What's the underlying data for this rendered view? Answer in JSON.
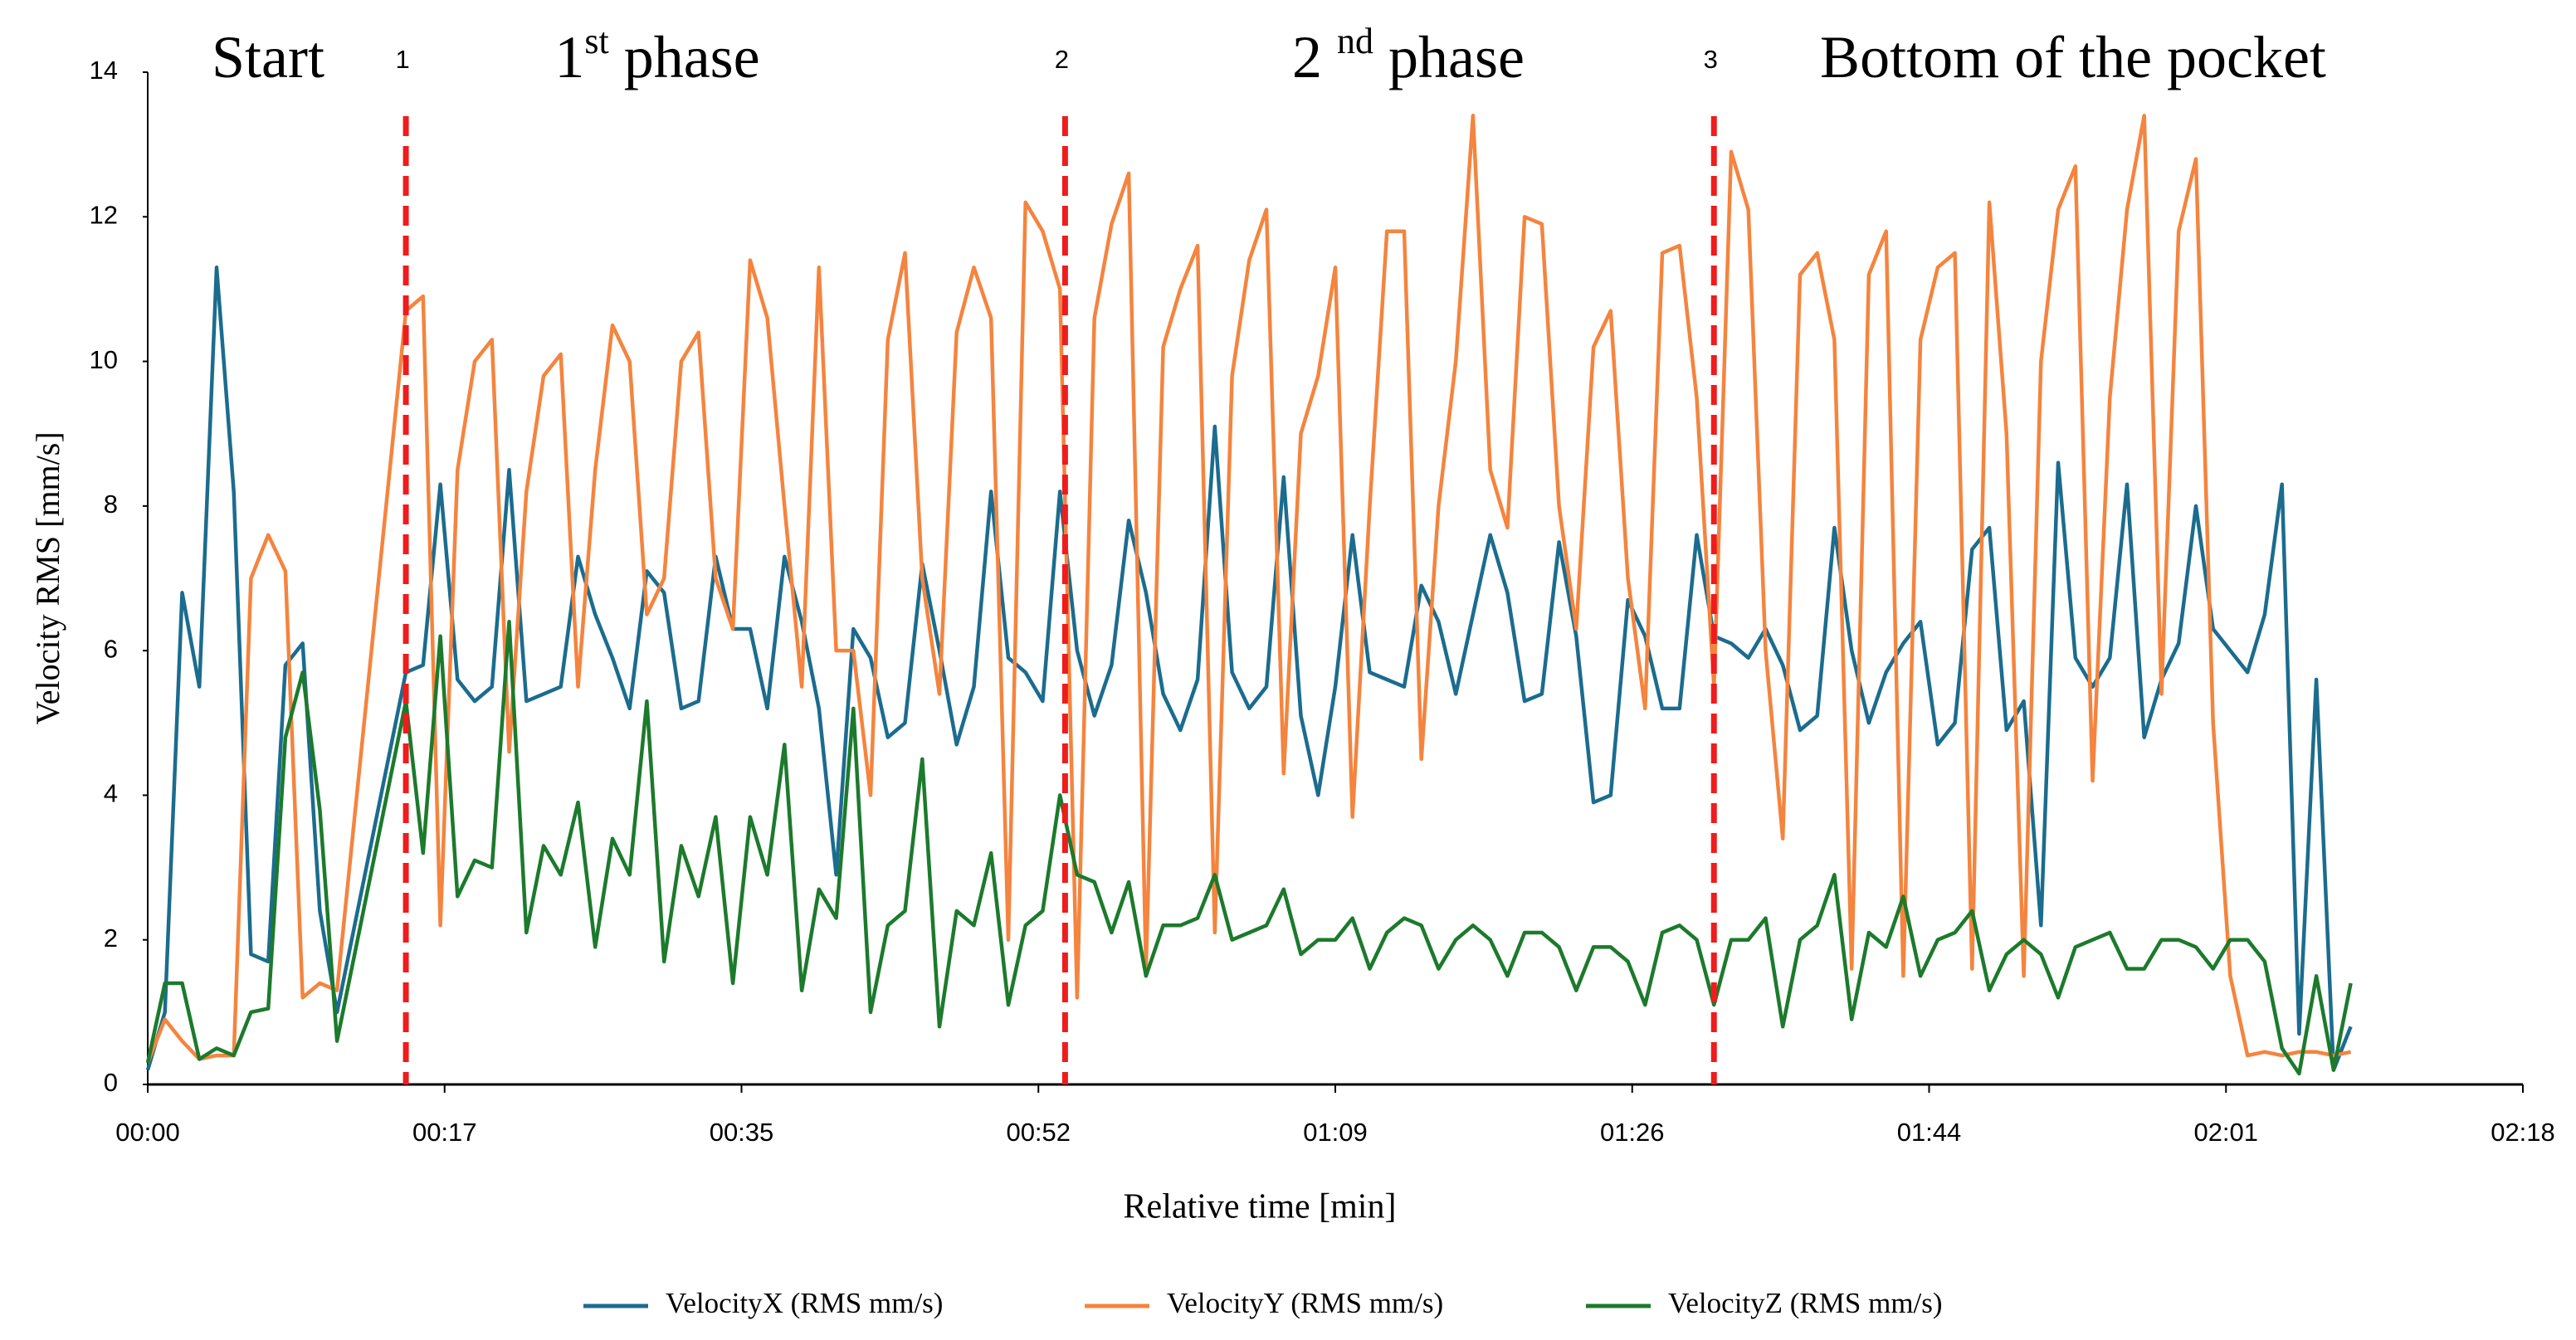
{
  "chart_data": {
    "type": "line",
    "x_label": "Relative time [min]",
    "y_label": "Velocity RMS [mm/s]",
    "xlim": [
      0,
      138
    ],
    "xticks": [
      {
        "value": 0,
        "label": "00:00"
      },
      {
        "value": 17.25,
        "label": "00:17"
      },
      {
        "value": 34.5,
        "label": "00:35"
      },
      {
        "value": 51.75,
        "label": "00:52"
      },
      {
        "value": 69,
        "label": "01:09"
      },
      {
        "value": 86.25,
        "label": "01:26"
      },
      {
        "value": 103.5,
        "label": "01:44"
      },
      {
        "value": 120.75,
        "label": "02:01"
      },
      {
        "value": 138,
        "label": "02:18"
      }
    ],
    "ylim": [
      0,
      14
    ],
    "yticks": [
      0,
      2,
      4,
      6,
      8,
      10,
      12,
      14
    ],
    "legend": "bottom",
    "markers": [
      {
        "label": "1",
        "x": 15,
        "color": "#ee1c1c"
      },
      {
        "label": "2",
        "x": 53.3,
        "color": "#ee1c1c"
      },
      {
        "label": "3",
        "x": 91,
        "color": "#ee1c1c"
      }
    ],
    "phases": [
      {
        "text": "Start"
      },
      {
        "text": "1",
        "sup": "st",
        "after": " phase"
      },
      {
        "text": "2 ",
        "sup": "nd",
        "after": " phase"
      },
      {
        "text": "Bottom of the pocket"
      }
    ],
    "x": [
      0,
      1,
      2,
      3,
      4,
      5,
      6,
      7,
      8,
      9,
      10,
      11,
      15,
      16,
      17,
      18,
      19,
      20,
      21,
      22,
      23,
      24,
      25,
      26,
      27,
      28,
      29,
      30,
      31,
      32,
      33,
      34,
      35,
      36,
      37,
      38,
      39,
      40,
      41,
      42,
      43,
      44,
      45,
      46,
      47,
      48,
      49,
      50,
      51,
      52,
      53,
      54,
      55,
      56,
      57,
      58,
      59,
      60,
      61,
      62,
      63,
      64,
      65,
      66,
      67,
      68,
      69,
      70,
      71,
      72,
      73,
      74,
      75,
      76,
      77,
      78,
      79,
      80,
      81,
      82,
      83,
      84,
      85,
      86,
      87,
      88,
      89,
      90,
      91,
      92,
      93,
      94,
      95,
      96,
      97,
      98,
      99,
      100,
      101,
      102,
      103,
      104,
      105,
      106,
      107,
      108,
      109,
      110,
      111,
      112,
      113,
      114,
      115,
      116,
      117,
      118,
      119,
      120,
      121,
      122,
      123,
      124,
      125,
      126,
      127,
      128
    ],
    "series": [
      {
        "name": "VelocityX (RMS mm/s)",
        "color": "#1b6c8e",
        "values": [
          0.2,
          1,
          6.8,
          5.5,
          11.3,
          8.2,
          1.8,
          1.7,
          5.8,
          6.1,
          2.4,
          1,
          5.7,
          5.8,
          8.3,
          5.6,
          5.3,
          5.5,
          8.5,
          5.3,
          5.4,
          5.5,
          7.3,
          6.5,
          5.9,
          5.2,
          7.1,
          6.8,
          5.2,
          5.3,
          7.3,
          6.3,
          6.3,
          5.2,
          7.3,
          6.4,
          5.2,
          2.9,
          6.3,
          5.9,
          4.8,
          5,
          7.2,
          6,
          4.7,
          5.5,
          8.2,
          5.9,
          5.7,
          5.3,
          8.2,
          6,
          5.1,
          5.8,
          7.8,
          6.8,
          5.4,
          4.9,
          5.6,
          9.1,
          5.7,
          5.2,
          5.5,
          8.4,
          5.1,
          4,
          5.5,
          7.6,
          5.7,
          5.6,
          5.5,
          6.9,
          6.4,
          5.4,
          6.5,
          7.6,
          6.8,
          5.3,
          5.4,
          7.5,
          6.2,
          3.9,
          4,
          6.7,
          6.2,
          5.2,
          5.2,
          7.6,
          6.2,
          6.1,
          5.9,
          6.3,
          5.8,
          4.9,
          5.1,
          7.7,
          6,
          5,
          5.7,
          6.1,
          6.4,
          4.7,
          5,
          7.4,
          7.7,
          4.9,
          5.3,
          2.2,
          8.6,
          5.9,
          5.5,
          5.9,
          8.3,
          4.8,
          5.6,
          6.1,
          8,
          6.3,
          6,
          5.7,
          6.5,
          8.3,
          0.7,
          5.6,
          0.2,
          0.8
        ]
      },
      {
        "name": "VelocityY (RMS mm/s)",
        "color": "#f4843e",
        "values": [
          0.3,
          0.9,
          0.6,
          0.35,
          0.4,
          0.4,
          7,
          7.6,
          7.1,
          1.2,
          1.4,
          1.3,
          10.7,
          10.9,
          2.2,
          8.5,
          10,
          10.3,
          4.6,
          8.2,
          9.8,
          10.1,
          5.5,
          8.5,
          10.5,
          10,
          6.5,
          7,
          10,
          10.4,
          7,
          6.3,
          11.4,
          10.6,
          8,
          5.5,
          11.3,
          6,
          6,
          4,
          10.3,
          11.5,
          7,
          5.4,
          10.4,
          11.3,
          10.6,
          2,
          12.2,
          11.8,
          11,
          1.2,
          10.6,
          11.9,
          12.6,
          1.6,
          10.2,
          11,
          11.6,
          2.1,
          9.8,
          11.4,
          12.1,
          4.3,
          9,
          9.8,
          11.3,
          3.7,
          8,
          11.8,
          11.8,
          4.5,
          8,
          10,
          13.4,
          8.5,
          7.7,
          12,
          11.9,
          8,
          6.3,
          10.2,
          10.7,
          7,
          5.2,
          11.5,
          11.6,
          9.5,
          5.5,
          12.9,
          12.1,
          6,
          3.4,
          11.2,
          11.5,
          10.3,
          1.6,
          11.2,
          11.8,
          1.5,
          10.3,
          11.3,
          11.5,
          1.6,
          12.2,
          9,
          1.5,
          10,
          12.1,
          12.7,
          4.2,
          9.5,
          12.1,
          13.4,
          5.4,
          11.8,
          12.8,
          5,
          1.5,
          0.4,
          0.45,
          0.4,
          0.45,
          0.45,
          0.4,
          0.45
        ]
      },
      {
        "name": "VelocityZ (RMS mm/s)",
        "color": "#1c7a2c",
        "values": [
          0.3,
          1.4,
          1.4,
          0.35,
          0.5,
          0.4,
          1,
          1.05,
          4.8,
          5.7,
          3.8,
          0.6,
          5.3,
          3.2,
          6.2,
          2.6,
          3.1,
          3,
          6.4,
          2.1,
          3.3,
          2.9,
          3.9,
          1.9,
          3.4,
          2.9,
          5.3,
          1.7,
          3.3,
          2.6,
          3.7,
          1.4,
          3.7,
          2.9,
          4.7,
          1.3,
          2.7,
          2.3,
          5.2,
          1,
          2.2,
          2.4,
          4.5,
          0.8,
          2.4,
          2.2,
          3.2,
          1.1,
          2.2,
          2.4,
          4,
          2.9,
          2.8,
          2.1,
          2.8,
          1.5,
          2.2,
          2.2,
          2.3,
          2.9,
          2,
          2.1,
          2.2,
          2.7,
          1.8,
          2,
          2,
          2.3,
          1.6,
          2.1,
          2.3,
          2.2,
          1.6,
          2,
          2.2,
          2,
          1.5,
          2.1,
          2.1,
          1.9,
          1.3,
          1.9,
          1.9,
          1.7,
          1.1,
          2.1,
          2.2,
          2,
          1.1,
          2,
          2,
          2.3,
          0.8,
          2,
          2.2,
          2.9,
          0.9,
          2.1,
          1.9,
          2.6,
          1.5,
          2,
          2.1,
          2.4,
          1.3,
          1.8,
          2,
          1.8,
          1.2,
          1.9,
          2,
          2.1,
          1.6,
          1.6,
          2,
          2,
          1.9,
          1.6,
          2,
          2,
          1.7,
          0.5,
          0.15,
          1.5,
          0.2,
          1.4
        ]
      }
    ]
  }
}
